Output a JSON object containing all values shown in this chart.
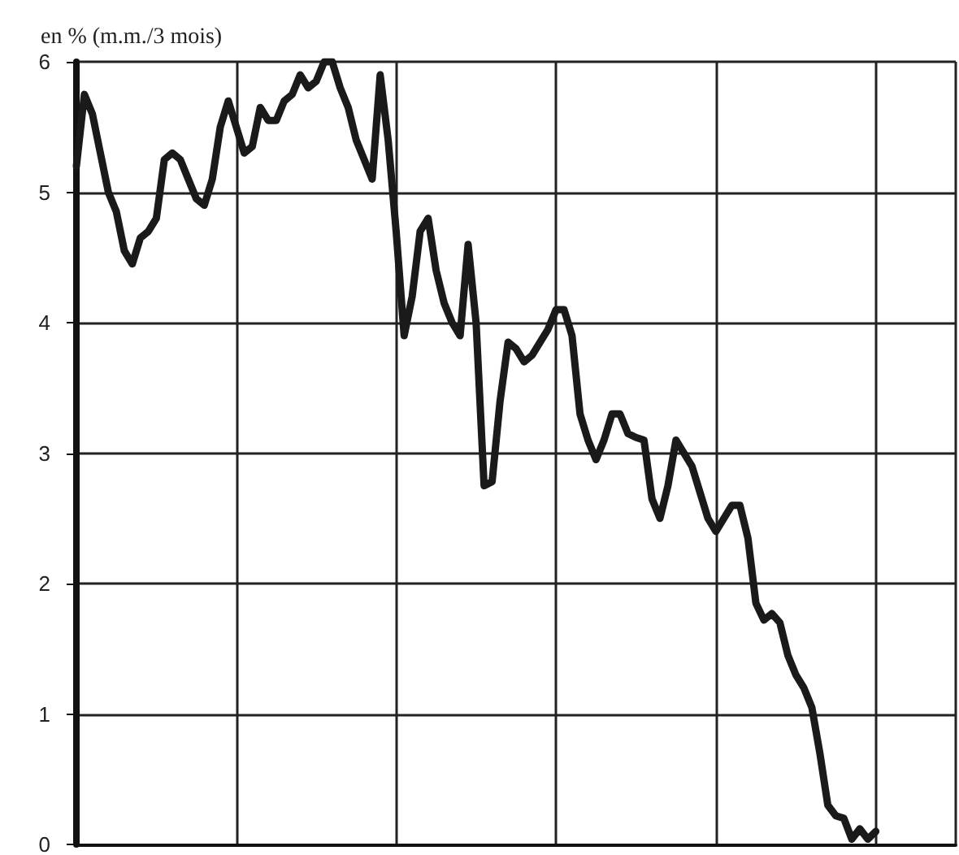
{
  "chart_data": {
    "type": "line",
    "ylabel": "en % (m.m./3 mois)",
    "categories": [
      null,
      null,
      null,
      null,
      null,
      null,
      null,
      null,
      null,
      null,
      null,
      null,
      null,
      null,
      null,
      null,
      null,
      null,
      null,
      null,
      null,
      null,
      null,
      null,
      null,
      null,
      null,
      null,
      null,
      null,
      null,
      null,
      null,
      null,
      null,
      null,
      null,
      null,
      null,
      null,
      null,
      null,
      null,
      null,
      null,
      null,
      null,
      null,
      null,
      null,
      null,
      null,
      null,
      null,
      null,
      null,
      null,
      null,
      null,
      null,
      null,
      null,
      null,
      null,
      null,
      null,
      null,
      null,
      null,
      null,
      null,
      null,
      null,
      null,
      null,
      null,
      null,
      null,
      null,
      null,
      null,
      null,
      null,
      null,
      null,
      null,
      null,
      null,
      null,
      null,
      null,
      null,
      null,
      null,
      null,
      null,
      null,
      null,
      null,
      null,
      null,
      null,
      null,
      null,
      null,
      null,
      null,
      null,
      null,
      null,
      null
    ],
    "series": [
      {
        "color": "#1a1a1a",
        "values": [
          5.2,
          5.75,
          5.6,
          5.3,
          5.0,
          4.85,
          4.55,
          4.45,
          4.65,
          4.7,
          4.8,
          5.25,
          5.3,
          5.25,
          5.1,
          4.95,
          4.9,
          5.1,
          5.5,
          5.7,
          5.5,
          5.3,
          5.35,
          5.65,
          5.55,
          5.55,
          5.7,
          5.75,
          5.9,
          5.8,
          5.85,
          6.0,
          6.0,
          5.8,
          5.65,
          5.4,
          5.25,
          5.1,
          5.9,
          5.4,
          4.7,
          3.9,
          4.2,
          4.7,
          4.8,
          4.4,
          4.15,
          4.0,
          3.9,
          4.6,
          4.0,
          2.75,
          2.78,
          3.4,
          3.85,
          3.8,
          3.7,
          3.75,
          3.85,
          3.95,
          4.1,
          4.1,
          3.9,
          3.3,
          3.1,
          2.95,
          3.1,
          3.3,
          3.3,
          3.15,
          3.12,
          3.1,
          2.65,
          2.5,
          2.75,
          3.1,
          3.0,
          2.9,
          2.7,
          2.5,
          2.4,
          2.5,
          2.6,
          2.6,
          2.35,
          1.85,
          1.72,
          1.77,
          1.7,
          1.45,
          1.3,
          1.2,
          1.05,
          0.7,
          0.3,
          0.22,
          0.2,
          0.04,
          0.12,
          0.04,
          0.1,
          null,
          null,
          null,
          null,
          null,
          null,
          null,
          null,
          null,
          null
        ]
      }
    ],
    "ylim": [
      0,
      6
    ],
    "yticks": [
      0,
      1,
      2,
      3,
      4,
      5,
      6
    ],
    "grid": true,
    "tick_labels": "y",
    "line_style": "solid"
  }
}
